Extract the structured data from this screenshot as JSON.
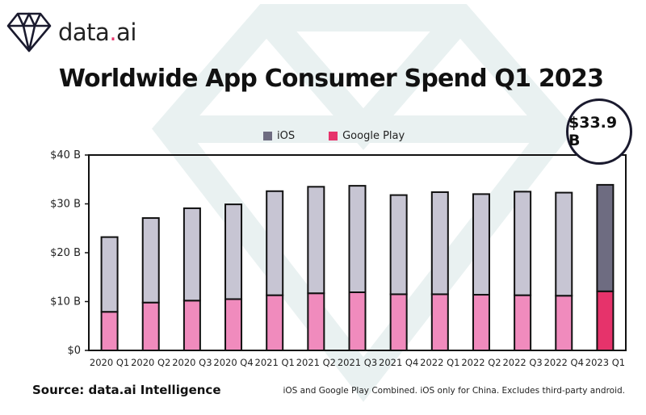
{
  "brand": {
    "name_main": "data",
    "name_dot": ".",
    "name_suffix": "ai"
  },
  "callout": {
    "text": "$33.9 B"
  },
  "source": "Source: data.ai Intelligence",
  "footnote": "iOS and Google Play Combined. iOS only for China. Excludes third-party android.",
  "colors": {
    "ios": "#c7c5d3",
    "ios_highlight": "#6e6c81",
    "google_play": "#f08bbd",
    "google_play_highlight": "#e6336b",
    "bar_outline": "#111111",
    "frame": "#111111"
  },
  "chart_data": {
    "type": "bar",
    "stacked": true,
    "title": "Worldwide App Consumer Spend Q1 2023",
    "xlabel": "",
    "ylabel": "",
    "ylim": [
      0,
      40
    ],
    "yticks": [
      0,
      10,
      20,
      30,
      40
    ],
    "ytick_labels": [
      "$0",
      "$10 B",
      "$20 B",
      "$30 B",
      "$40 B"
    ],
    "categories": [
      "2020 Q1",
      "2020 Q2",
      "2020 Q3",
      "2020 Q4",
      "2021 Q1",
      "2021 Q2",
      "2021 Q3",
      "2021 Q4",
      "2022 Q1",
      "2022 Q2",
      "2022 Q3",
      "2022 Q4",
      "2023 Q1"
    ],
    "series": [
      {
        "name": "Google Play",
        "values": [
          7.9,
          9.8,
          10.2,
          10.5,
          11.3,
          11.7,
          11.9,
          11.5,
          11.5,
          11.4,
          11.3,
          11.2,
          12.1
        ]
      },
      {
        "name": "iOS",
        "values": [
          15.3,
          17.3,
          18.9,
          19.4,
          21.3,
          21.8,
          21.8,
          20.3,
          20.9,
          20.6,
          21.2,
          21.1,
          21.8
        ]
      }
    ],
    "legend": [
      "iOS",
      "Google Play"
    ],
    "legend_position": "top-center",
    "highlight_category": "2023 Q1",
    "grid": false
  }
}
